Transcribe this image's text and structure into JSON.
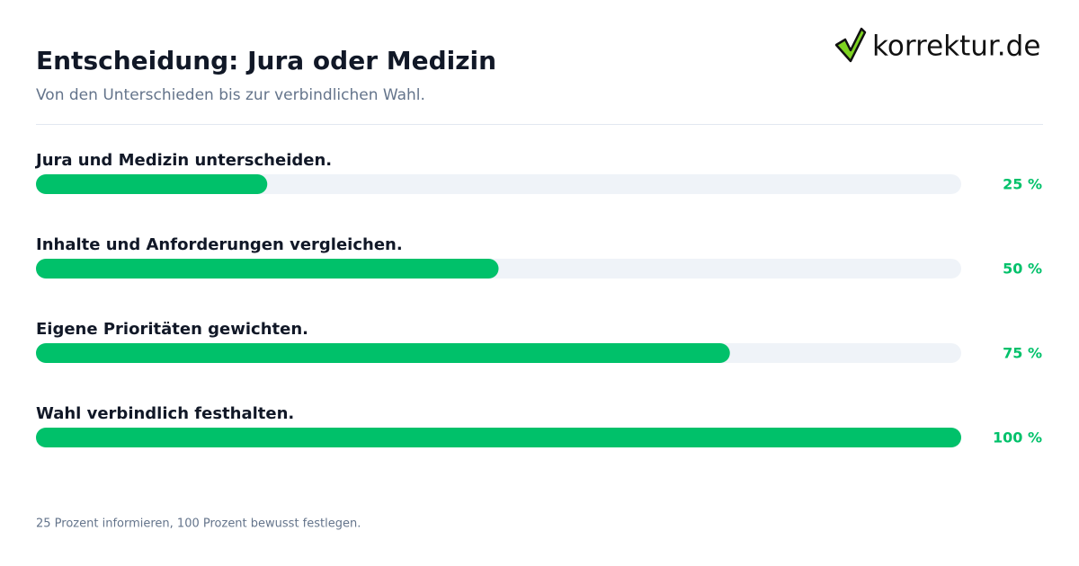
{
  "brand": "korrektur.de",
  "chart_data": {
    "type": "bar",
    "orientation": "horizontal",
    "title": "Entscheidung: Jura oder Medizin",
    "subtitle": "Von den Unterschieden bis zur verbindlichen Wahl.",
    "categories": [
      "Jura und Medizin unterscheiden.",
      "Inhalte und Anforderungen vergleichen.",
      "Eigene Prioritäten gewichten.",
      "Wahl verbindlich festhalten."
    ],
    "values": [
      25,
      50,
      75,
      100
    ],
    "value_labels": [
      "25 %",
      "50 %",
      "75 %",
      "100 %"
    ],
    "color": "#00c16a",
    "xlim": [
      0,
      100
    ],
    "note": "25 Prozent informieren, 100 Prozent bewusst festlegen."
  }
}
